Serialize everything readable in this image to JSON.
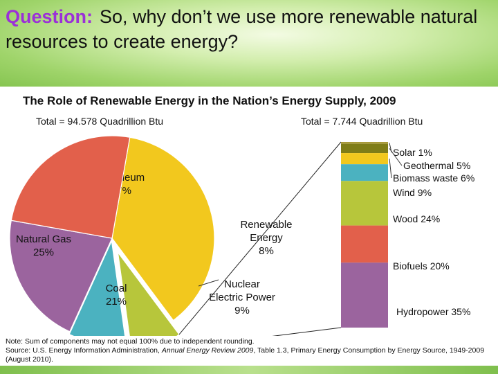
{
  "header": {
    "label": "Question:",
    "text": "So, why don’t we use more renewable natural resources to create energy?"
  },
  "chart_data": [
    {
      "type": "pie",
      "title": "The Role of Renewable Energy in the Nation’s Energy Supply, 2009",
      "total_label": "Total = 94.578 Quadrillion Btu",
      "slices": [
        {
          "name": "Petroleum",
          "value": 37,
          "label": "37%",
          "color": "#f2c81e"
        },
        {
          "name": "Renewable Energy",
          "value": 8,
          "label": "8%",
          "color": "#b7c63b"
        },
        {
          "name": "Nuclear Electric Power",
          "value": 9,
          "label": "9%",
          "color": "#4bb2c0"
        },
        {
          "name": "Coal",
          "value": 21,
          "label": "21%",
          "color": "#9b649e"
        },
        {
          "name": "Natural Gas",
          "value": 25,
          "label": "25%",
          "color": "#e2604b"
        }
      ]
    },
    {
      "type": "bar",
      "stacked": true,
      "total_label": "Total = 7.744 Quadrillion Btu",
      "segments": [
        {
          "name": "Solar",
          "value": 1,
          "label": "Solar 1%",
          "color": "#a89a3a"
        },
        {
          "name": "Geothermal",
          "value": 5,
          "label": "Geothermal 5%",
          "color": "#7f7d18"
        },
        {
          "name": "Biomass waste",
          "value": 6,
          "label": "Biomass waste 6%",
          "color": "#f2c81e"
        },
        {
          "name": "Wind",
          "value": 9,
          "label": "Wind 9%",
          "color": "#4bb2c0"
        },
        {
          "name": "Wood",
          "value": 24,
          "label": "Wood 24%",
          "color": "#b7c63b"
        },
        {
          "name": "Biofuels",
          "value": 20,
          "label": "Biofuels 20%",
          "color": "#e2604b"
        },
        {
          "name": "Hydropower",
          "value": 35,
          "label": "Hydropower 35%",
          "color": "#9b649e"
        }
      ]
    }
  ],
  "notes": {
    "line1": "Note: Sum of components may not equal 100% due to independent rounding.",
    "source_prefix": "Source: U.S. Energy Information Administration, ",
    "source_title": "Annual Energy Review 2009",
    "source_suffix": ", Table 1.3, Primary Energy Consumption by Energy Source, 1949-2009 (August 2010)."
  }
}
